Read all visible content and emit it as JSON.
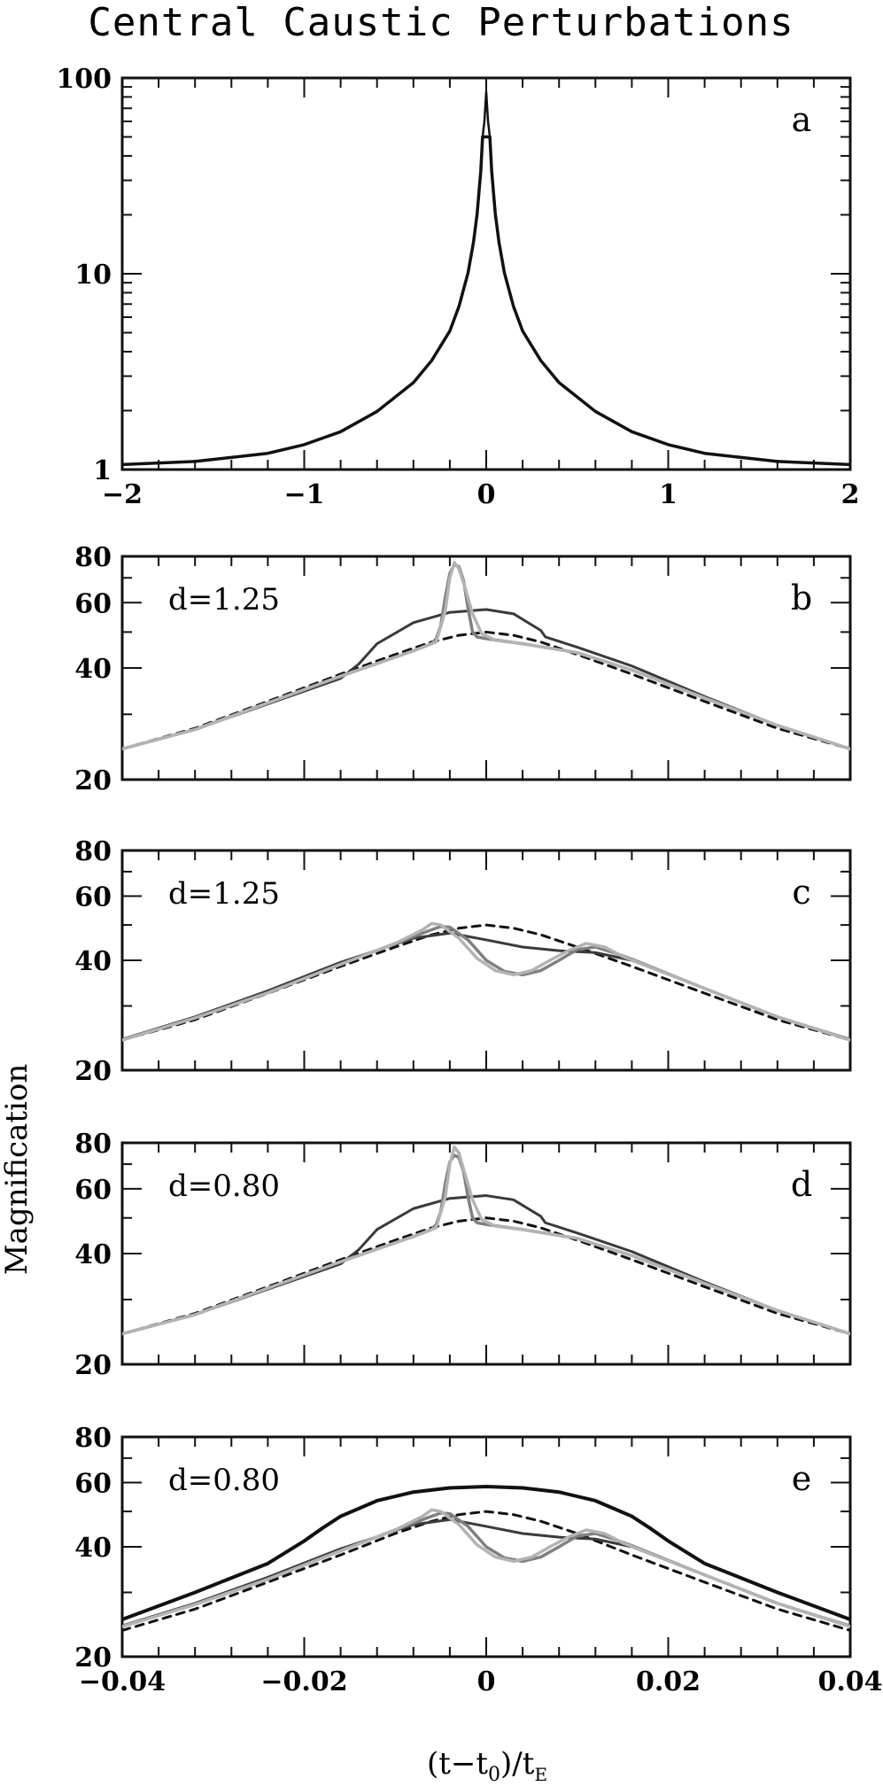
{
  "title": "Central Caustic Perturbations",
  "xlabel": "(t−t₀)/t_E",
  "ylabel": "Magnification",
  "colors": {
    "black": "#111111",
    "dark_gray": "#3a3a3a",
    "mid_gray": "#808080",
    "light_gray": "#b3b3b3"
  },
  "chart_data": [
    {
      "id": "a",
      "type": "line",
      "panel_label": "a",
      "annotation": "",
      "xscale": "linear",
      "yscale": "log",
      "xlim": [
        -2,
        2
      ],
      "ylim": [
        1,
        100
      ],
      "x_ticks": [
        -2,
        -1,
        0,
        1,
        2
      ],
      "x_tick_labels": [
        "−2",
        "−1",
        "0",
        "1",
        "2"
      ],
      "y_ticks": [
        1,
        10,
        100
      ],
      "y_tick_labels": [
        "1",
        "10",
        "100"
      ],
      "series": [
        {
          "style": "solid",
          "color": "#111111",
          "width": 3.5,
          "x": [
            -2,
            -1.6,
            -1.2,
            -1.0,
            -0.8,
            -0.6,
            -0.4,
            -0.3,
            -0.2,
            -0.15,
            -0.1,
            -0.07,
            -0.05,
            -0.03,
            -0.02,
            0,
            0.02,
            0.03,
            0.05,
            0.07,
            0.1,
            0.15,
            0.2,
            0.3,
            0.4,
            0.6,
            0.8,
            1.0,
            1.2,
            1.6,
            2
          ],
          "y": [
            1.06,
            1.1,
            1.21,
            1.34,
            1.56,
            1.98,
            2.78,
            3.6,
            5.1,
            6.8,
            10.1,
            14.5,
            20.2,
            33.4,
            50,
            50,
            50,
            33.4,
            20.2,
            14.5,
            10.1,
            6.8,
            5.1,
            3.6,
            2.78,
            1.98,
            1.56,
            1.34,
            1.21,
            1.1,
            1.06
          ]
        },
        {
          "style": "solid",
          "color": "#111111",
          "width": 2.5,
          "x": [
            -0.02,
            -0.01,
            0,
            0.01,
            0.02
          ],
          "y": [
            50,
            60,
            85,
            60,
            50
          ]
        }
      ]
    },
    {
      "id": "b",
      "type": "line",
      "panel_label": "b",
      "annotation": "d=1.25",
      "xscale": "linear",
      "yscale": "log",
      "xlim": [
        -0.04,
        0.04
      ],
      "ylim": [
        20,
        80
      ],
      "x_ticks": [
        -0.04,
        -0.02,
        0,
        0.02,
        0.04
      ],
      "y_ticks": [
        20,
        40,
        60,
        80
      ],
      "y_tick_labels": [
        "20",
        "40",
        "60",
        "80"
      ],
      "series": [
        {
          "style": "dashed",
          "color": "#111111",
          "width": 3,
          "x": [
            -0.04,
            -0.032,
            -0.024,
            -0.016,
            -0.01,
            -0.006,
            -0.003,
            0,
            0.003,
            0.006,
            0.01,
            0.016,
            0.024,
            0.032,
            0.04
          ],
          "y": [
            24.2,
            27.5,
            32.5,
            38.5,
            43.5,
            47,
            49,
            50,
            49,
            47,
            43.5,
            38.5,
            32.5,
            27.5,
            24.2
          ]
        },
        {
          "style": "solid",
          "color": "#3a3a3a",
          "width": 3,
          "x": [
            -0.04,
            -0.032,
            -0.024,
            -0.016,
            -0.014,
            -0.012,
            -0.008,
            -0.004,
            0,
            0.003,
            0.006,
            0.0065,
            0.01,
            0.016,
            0.024,
            0.032,
            0.04
          ],
          "y": [
            24.2,
            27.3,
            32,
            37.5,
            41,
            46.5,
            53,
            56.5,
            57.5,
            56,
            50.5,
            48.5,
            45.5,
            40.5,
            33.5,
            28,
            24.2
          ]
        },
        {
          "style": "solid",
          "color": "#808080",
          "width": 3.5,
          "x": [
            -0.04,
            -0.032,
            -0.024,
            -0.016,
            -0.008,
            -0.006,
            -0.0055,
            -0.005,
            -0.0045,
            -0.004,
            -0.0035,
            -0.003,
            -0.0025,
            -0.002,
            -0.0015,
            -0.001,
            0,
            0.004,
            0.01,
            0.016,
            0.024,
            0.032,
            0.04
          ],
          "y": [
            24.2,
            27.3,
            32.2,
            38,
            44.5,
            46.5,
            48,
            52,
            62,
            72,
            76,
            75,
            69,
            58,
            50,
            48.5,
            48,
            46.5,
            44,
            39.5,
            33.2,
            28,
            24.2
          ]
        },
        {
          "style": "solid",
          "color": "#b3b3b3",
          "width": 3.5,
          "x": [
            -0.04,
            -0.032,
            -0.024,
            -0.016,
            -0.008,
            -0.0055,
            -0.0045,
            -0.004,
            -0.0035,
            -0.003,
            -0.0025,
            -0.0015,
            -0.0005,
            0.001,
            0.004,
            0.01,
            0.016,
            0.024,
            0.032,
            0.04
          ],
          "y": [
            24.2,
            27.3,
            32.2,
            38,
            44.5,
            47,
            57,
            70,
            77,
            74,
            68,
            56,
            49.5,
            47.5,
            46.5,
            44,
            39.5,
            33.2,
            28,
            24.2
          ]
        }
      ]
    },
    {
      "id": "c",
      "type": "line",
      "panel_label": "c",
      "annotation": "d=1.25",
      "xscale": "linear",
      "yscale": "log",
      "xlim": [
        -0.04,
        0.04
      ],
      "ylim": [
        20,
        80
      ],
      "x_ticks": [
        -0.04,
        -0.02,
        0,
        0.02,
        0.04
      ],
      "y_ticks": [
        20,
        40,
        60,
        80
      ],
      "y_tick_labels": [
        "20",
        "40",
        "60",
        "80"
      ],
      "series": [
        {
          "style": "dashed",
          "color": "#111111",
          "width": 3,
          "x": [
            -0.04,
            -0.032,
            -0.024,
            -0.016,
            -0.01,
            -0.006,
            -0.003,
            0,
            0.003,
            0.006,
            0.01,
            0.016,
            0.024,
            0.032,
            0.04
          ],
          "y": [
            24.2,
            27.5,
            32.5,
            38.5,
            43.5,
            47,
            49,
            50,
            49,
            47,
            43.5,
            38.5,
            32.5,
            27.5,
            24.2
          ]
        },
        {
          "style": "solid",
          "color": "#3a3a3a",
          "width": 3,
          "x": [
            -0.04,
            -0.032,
            -0.024,
            -0.016,
            -0.008,
            -0.004,
            0,
            0.004,
            0.008,
            0.012,
            0.016,
            0.024,
            0.032,
            0.04
          ],
          "y": [
            24.3,
            28,
            33,
            39.5,
            46,
            47.5,
            45.5,
            43.5,
            42.5,
            42,
            40,
            33.5,
            28,
            24.3
          ]
        },
        {
          "style": "solid",
          "color": "#808080",
          "width": 3.5,
          "x": [
            -0.04,
            -0.032,
            -0.024,
            -0.016,
            -0.01,
            -0.006,
            -0.005,
            -0.004,
            -0.002,
            0,
            0.002,
            0.004,
            0.006,
            0.008,
            0.01,
            0.012,
            0.014,
            0.016,
            0.024,
            0.032,
            0.04
          ],
          "y": [
            24.2,
            27.8,
            32.6,
            39,
            44.5,
            48.5,
            49.5,
            49.3,
            45.5,
            40,
            37.3,
            36.5,
            37.5,
            40,
            42.8,
            43.5,
            42,
            40.3,
            33.5,
            28,
            24.2
          ]
        },
        {
          "style": "solid",
          "color": "#b3b3b3",
          "width": 3.5,
          "x": [
            -0.04,
            -0.032,
            -0.024,
            -0.016,
            -0.01,
            -0.007,
            -0.006,
            -0.005,
            -0.003,
            -0.001,
            0.001,
            0.003,
            0.005,
            0.007,
            0.009,
            0.011,
            0.013,
            0.015,
            0.024,
            0.032,
            0.04
          ],
          "y": [
            24.2,
            27.8,
            32.6,
            39,
            44.5,
            48.5,
            50.5,
            50,
            46,
            40.5,
            37.5,
            36.5,
            37.5,
            40,
            42.5,
            44.5,
            43.5,
            41,
            33.5,
            28,
            24.2
          ]
        }
      ]
    },
    {
      "id": "d",
      "type": "line",
      "panel_label": "d",
      "annotation": "d=0.80",
      "xscale": "linear",
      "yscale": "log",
      "xlim": [
        -0.04,
        0.04
      ],
      "ylim": [
        20,
        80
      ],
      "x_ticks": [
        -0.04,
        -0.02,
        0,
        0.02,
        0.04
      ],
      "y_ticks": [
        20,
        40,
        60,
        80
      ],
      "y_tick_labels": [
        "20",
        "40",
        "60",
        "80"
      ],
      "series": [
        {
          "style": "dashed",
          "color": "#111111",
          "width": 3,
          "x": [
            -0.04,
            -0.032,
            -0.024,
            -0.016,
            -0.01,
            -0.006,
            -0.003,
            0,
            0.003,
            0.006,
            0.01,
            0.016,
            0.024,
            0.032,
            0.04
          ],
          "y": [
            24.2,
            27.5,
            32.5,
            38.5,
            43.5,
            47,
            49,
            50,
            49,
            47,
            43.5,
            38.5,
            32.5,
            27.5,
            24.2
          ]
        },
        {
          "style": "solid",
          "color": "#3a3a3a",
          "width": 3,
          "x": [
            -0.04,
            -0.032,
            -0.024,
            -0.016,
            -0.014,
            -0.012,
            -0.008,
            -0.004,
            0,
            0.003,
            0.006,
            0.0065,
            0.01,
            0.016,
            0.024,
            0.032,
            0.04
          ],
          "y": [
            24.2,
            27.3,
            32,
            37.5,
            41,
            46.5,
            53,
            56.5,
            57.5,
            56,
            50.5,
            48.5,
            45.5,
            40.5,
            33.5,
            28,
            24.2
          ]
        },
        {
          "style": "solid",
          "color": "#808080",
          "width": 3.5,
          "x": [
            -0.04,
            -0.032,
            -0.024,
            -0.016,
            -0.008,
            -0.006,
            -0.0055,
            -0.005,
            -0.0045,
            -0.004,
            -0.0035,
            -0.003,
            -0.0025,
            -0.002,
            -0.0015,
            -0.001,
            0,
            0.004,
            0.01,
            0.016,
            0.024,
            0.032,
            0.04
          ],
          "y": [
            24.2,
            27.3,
            32.2,
            38,
            44.5,
            46.5,
            48,
            52,
            62,
            71,
            74,
            73,
            67,
            57,
            50,
            48.5,
            48,
            46.5,
            44,
            39.5,
            33.2,
            28,
            24.2
          ]
        },
        {
          "style": "solid",
          "color": "#b3b3b3",
          "width": 3.5,
          "x": [
            -0.04,
            -0.032,
            -0.024,
            -0.016,
            -0.008,
            -0.0055,
            -0.0045,
            -0.004,
            -0.0035,
            -0.003,
            -0.0025,
            -0.0015,
            -0.0005,
            0.001,
            0.004,
            0.01,
            0.016,
            0.024,
            0.032,
            0.04
          ],
          "y": [
            24.2,
            27.3,
            32.2,
            38,
            44.5,
            47,
            57,
            70,
            78,
            75,
            68,
            56,
            49.5,
            47.5,
            46.5,
            44,
            39.5,
            33.2,
            28,
            24.2
          ]
        }
      ]
    },
    {
      "id": "e",
      "type": "line",
      "panel_label": "e",
      "annotation": "d=0.80",
      "xscale": "linear",
      "yscale": "log",
      "xlim": [
        -0.04,
        0.04
      ],
      "ylim": [
        20,
        80
      ],
      "x_ticks": [
        -0.04,
        -0.02,
        0,
        0.02,
        0.04
      ],
      "x_tick_labels": [
        "−0.04",
        "−0.02",
        "0",
        "0.02",
        "0.04"
      ],
      "y_ticks": [
        20,
        40,
        60,
        80
      ],
      "y_tick_labels": [
        "20",
        "40",
        "60",
        "80"
      ],
      "series": [
        {
          "style": "dashed",
          "color": "#111111",
          "width": 3,
          "x": [
            -0.04,
            -0.032,
            -0.024,
            -0.016,
            -0.01,
            -0.006,
            -0.003,
            0,
            0.003,
            0.006,
            0.01,
            0.016,
            0.024,
            0.032,
            0.04
          ],
          "y": [
            23.6,
            27,
            32,
            38,
            43.5,
            47,
            49,
            50,
            49,
            47,
            43.5,
            38,
            32,
            27,
            23.6
          ]
        },
        {
          "style": "solid",
          "color": "#111111",
          "width": 4,
          "x": [
            -0.04,
            -0.032,
            -0.024,
            -0.02,
            -0.018,
            -0.016,
            -0.012,
            -0.008,
            -0.004,
            0,
            0.004,
            0.008,
            0.012,
            0.016,
            0.018,
            0.02,
            0.024,
            0.032,
            0.04
          ],
          "y": [
            25.3,
            30,
            36,
            41.5,
            45,
            48.5,
            53.5,
            56.5,
            58,
            58.5,
            58,
            56.5,
            53.5,
            48.5,
            45,
            41.5,
            36,
            30,
            25.3
          ]
        },
        {
          "style": "solid",
          "color": "#3a3a3a",
          "width": 3,
          "x": [
            -0.04,
            -0.032,
            -0.024,
            -0.016,
            -0.008,
            -0.004,
            0,
            0.004,
            0.008,
            0.012,
            0.016,
            0.024,
            0.032,
            0.04
          ],
          "y": [
            24.3,
            28,
            33,
            39.5,
            46,
            47.5,
            45.5,
            43.5,
            42.5,
            42,
            40,
            33.5,
            28,
            24.3
          ]
        },
        {
          "style": "solid",
          "color": "#808080",
          "width": 3.5,
          "x": [
            -0.04,
            -0.032,
            -0.024,
            -0.016,
            -0.01,
            -0.006,
            -0.005,
            -0.004,
            -0.002,
            0,
            0.002,
            0.004,
            0.006,
            0.008,
            0.01,
            0.012,
            0.014,
            0.016,
            0.024,
            0.032,
            0.04
          ],
          "y": [
            24.2,
            27.8,
            32.6,
            39,
            44.5,
            48.5,
            49.5,
            49.3,
            45.5,
            40,
            37.3,
            36.5,
            37.5,
            40,
            42.8,
            43.5,
            42,
            40.3,
            33.5,
            28,
            24.2
          ]
        },
        {
          "style": "solid",
          "color": "#b3b3b3",
          "width": 3.5,
          "x": [
            -0.04,
            -0.032,
            -0.024,
            -0.016,
            -0.01,
            -0.007,
            -0.006,
            -0.005,
            -0.003,
            -0.001,
            0.001,
            0.003,
            0.005,
            0.007,
            0.009,
            0.011,
            0.013,
            0.015,
            0.024,
            0.032,
            0.04
          ],
          "y": [
            24.2,
            27.8,
            32.6,
            39,
            44.5,
            48.5,
            50.5,
            50,
            46,
            40.5,
            37.5,
            36.5,
            37.5,
            40,
            42.5,
            44.5,
            43.5,
            41,
            33.5,
            28,
            24.2
          ]
        }
      ]
    }
  ]
}
